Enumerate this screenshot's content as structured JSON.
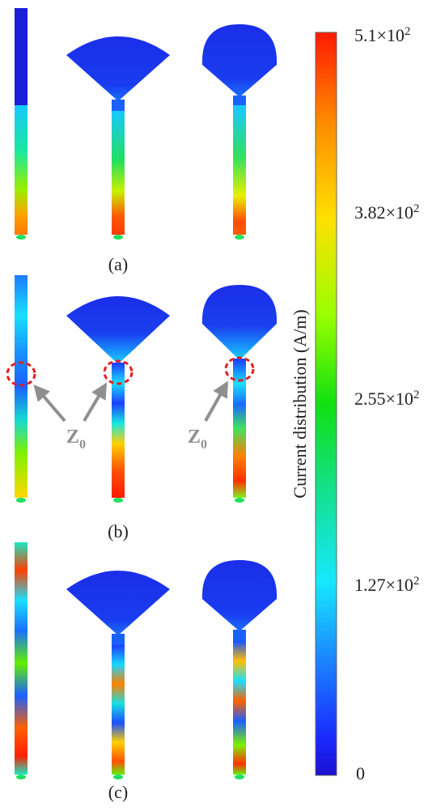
{
  "panels": [
    {
      "label": "(a)"
    },
    {
      "label": "(b)",
      "annotation": "Z",
      "annotation_sub": "0"
    },
    {
      "label": "(c)"
    }
  ],
  "colorbar": {
    "title": "Current distribution (A/m)",
    "tick_values": [
      "5.1",
      "3.82",
      "2.55",
      "1.27"
    ],
    "tick_exponent": "2",
    "tick_times": "×10",
    "zero_label": "0",
    "colors": [
      "#ff1a00",
      "#ff8a00",
      "#ffe000",
      "#9aff00",
      "#10e010",
      "#14e090",
      "#16e8ff",
      "#1a80ff",
      "#1a2aff",
      "#1b0fd0"
    ]
  },
  "colors": {
    "low": "#1a2ee8",
    "marker": "#e02020",
    "arrow": "#8f8f8f"
  }
}
